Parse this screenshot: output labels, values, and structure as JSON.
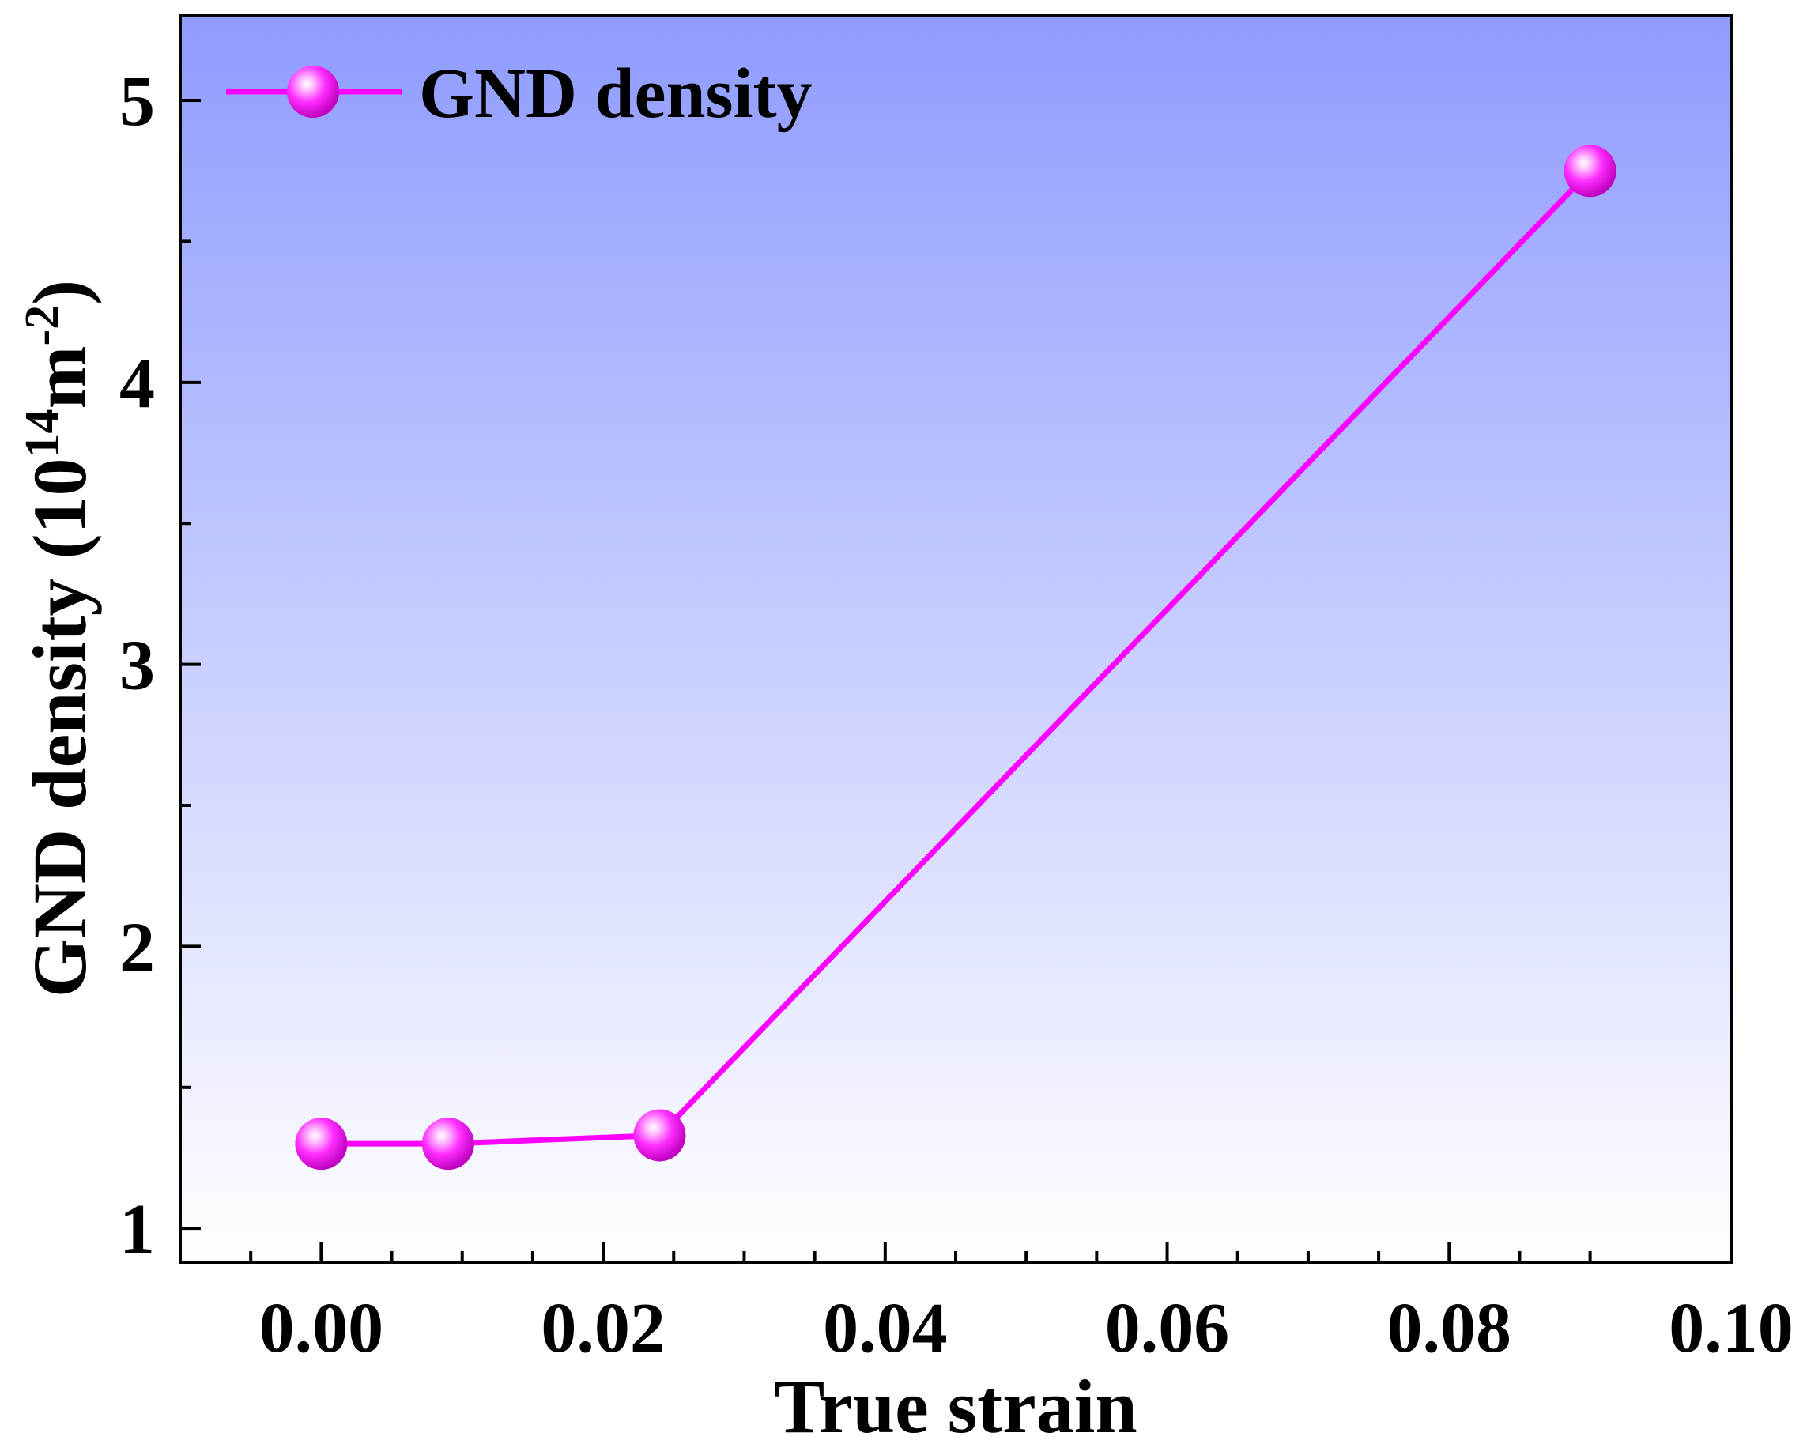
{
  "chart_data": {
    "type": "line",
    "xlabel": "True strain",
    "ylabel_main": "GND density (10",
    "ylabel_sup1": "14",
    "ylabel_mid": "m",
    "ylabel_sup2": "-2",
    "ylabel_end": ")",
    "xlim": [
      -0.01,
      0.1
    ],
    "ylim": [
      0.88,
      5.3
    ],
    "x_ticks": [
      "0.00",
      "0.02",
      "0.04",
      "0.06",
      "0.08",
      "0.10"
    ],
    "y_ticks": [
      "1",
      "2",
      "3",
      "4",
      "5"
    ],
    "grid": false,
    "legend_position": "top-left",
    "series": [
      {
        "name": "GND density",
        "color": "#ff00ff",
        "marker": "sphere",
        "x": [
          0.0,
          0.009,
          0.024,
          0.09
        ],
        "y": [
          1.3,
          1.3,
          1.33,
          4.75
        ]
      }
    ],
    "background_gradient": {
      "top": "#8f9cff",
      "bottom": "#ffffff"
    }
  }
}
